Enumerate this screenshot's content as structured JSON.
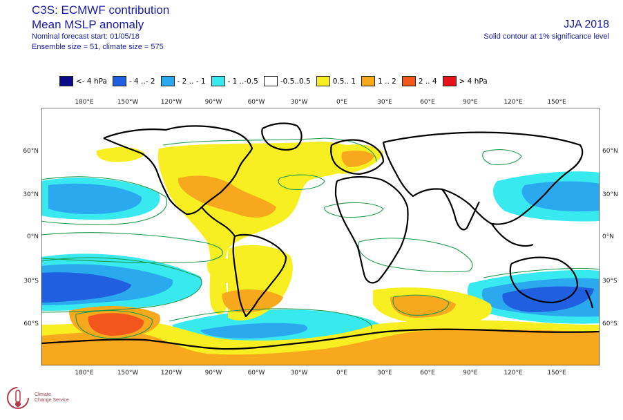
{
  "header": {
    "title": "C3S: ECMWF contribution",
    "subtitle": "Mean MSLP anomaly",
    "forecast_start": "Nominal forecast start: 01/05/18",
    "ensemble": "Ensemble size = 51, climate size = 575",
    "season": "JJA 2018",
    "note": "Solid contour at 1% significance level"
  },
  "legend": [
    {
      "label": "<- 4 hPa",
      "color": "#0b0b8a"
    },
    {
      "label": "- 4 ..- 2",
      "color": "#1f5fe0"
    },
    {
      "label": "- 2 .. - 1",
      "color": "#2aa9ee"
    },
    {
      "label": "- 1 ..-0.5",
      "color": "#38eaf0"
    },
    {
      "label": "-0.5..0.5",
      "color": "#ffffff"
    },
    {
      "label": "0.5.. 1",
      "color": "#f8ef22"
    },
    {
      "label": "1 .. 2",
      "color": "#f7a81c"
    },
    {
      "label": "2 .. 4",
      "color": "#f2561d"
    },
    {
      "label": "> 4 hPa",
      "color": "#e8121c"
    }
  ],
  "axes": {
    "lon_labels": [
      "180°E",
      "150°W",
      "120°W",
      "90°W",
      "60°W",
      "30°W",
      "0°E",
      "30°E",
      "60°E",
      "90°E",
      "120°E",
      "150°E"
    ],
    "lat_labels": [
      "60°N",
      "30°N",
      "0°N",
      "30°S",
      "60°S"
    ]
  },
  "colors": {
    "title": "#1a1aa8",
    "coast": "#000000",
    "contour": "#1a9a4a"
  },
  "logo": {
    "name": "climate-change-service-logo",
    "line1": "Climate",
    "line2": "Change Service"
  }
}
